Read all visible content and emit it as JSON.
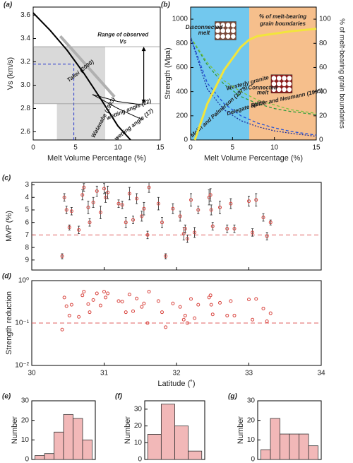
{
  "chart_data": [
    {
      "type": "line",
      "panel": "(a)",
      "xlabel": "Melt Volume Percentage (%)",
      "ylabel": "Vs (km/s)",
      "xlim": [
        0,
        15
      ],
      "xticks": [
        0,
        5,
        10,
        15
      ],
      "ylim": [
        2.53,
        3.67
      ],
      "yticks": [
        2.6,
        2.8,
        {
          "value": 3,
          "label": "3.0"
        },
        3.2,
        3.4,
        3.6
      ],
      "shade": {
        "x": [
          0,
          8.5,
          8.5,
          2.8,
          2.8,
          0
        ],
        "y": [
          3.33,
          3.33,
          2.53,
          2.53,
          2.84,
          2.84
        ],
        "color": "#d9d9d9"
      },
      "range": [
        2.84,
        3.33
      ],
      "guide": {
        "x": 4.8,
        "y": 3.18,
        "color": "#2233cc"
      },
      "annotations": [
        "Range of observed",
        "Vs"
      ],
      "series": [
        {
          "name": "Takei (2000)",
          "color": "#b0b0b0",
          "width": 4,
          "x": [
            3.2,
            9.6
          ],
          "values": [
            3.42,
            2.9
          ]
        },
        {
          "name": "Watanabe (1993)",
          "color": "#000000",
          "width": 2,
          "x": [
            0,
            2,
            4,
            6,
            8,
            10,
            11.5
          ],
          "values": [
            3.62,
            3.47,
            3.3,
            3.1,
            2.88,
            2.65,
            2.53
          ]
        },
        {
          "name": "wetting angle (22)",
          "color": "#000000",
          "width": 1,
          "x": [
            7,
            10,
            13
          ],
          "values": [
            2.92,
            2.86,
            2.83
          ]
        },
        {
          "name": "wetting angle (17)",
          "color": "#000000",
          "width": 1,
          "x": [
            7,
            10,
            13
          ],
          "values": [
            2.92,
            2.8,
            2.7
          ]
        }
      ]
    },
    {
      "type": "line",
      "panel": "(b)",
      "xlabel": "Melt Volume Percentage (%)",
      "ylabel": "Strength (Mpa)",
      "y2label": "% of melt-bearing grain boundaries",
      "xlim": [
        0,
        15
      ],
      "xticks": [
        0,
        5,
        10,
        15
      ],
      "ylim": [
        0,
        1100
      ],
      "yticks": [
        0,
        200,
        400,
        600,
        800,
        1000
      ],
      "y2lim": [
        0,
        110
      ],
      "y2ticks": [
        0,
        20,
        40,
        60,
        80,
        100
      ],
      "regions": [
        {
          "x": [
            0,
            7
          ],
          "color": "#72c8ee"
        },
        {
          "x": [
            7,
            15
          ],
          "color": "#f6bf8c"
        }
      ],
      "annotations": [
        "% of melt-bearing",
        "grain boundaries",
        "Disconnected",
        "melt",
        "Connected",
        "melt"
      ],
      "series": [
        {
          "name": "Westerly granite",
          "color": "#2e9b3f",
          "dash": "4,3",
          "x": [
            0,
            2,
            4,
            6,
            8,
            10,
            12,
            15
          ],
          "values": [
            850,
            620,
            460,
            360,
            300,
            260,
            235,
            210
          ]
        },
        {
          "name": "Rutter and Neumann (1995)",
          "color": "#7cc242",
          "dash": "4,3",
          "x": [
            0,
            2,
            4,
            6,
            8,
            10,
            12,
            15
          ],
          "values": [
            850,
            640,
            490,
            400,
            330,
            290,
            250,
            220
          ]
        },
        {
          "name": "Delegate aplite",
          "color": "#1f4fd8",
          "dash": "4,3",
          "x": [
            0,
            2,
            4,
            6,
            8,
            10,
            12,
            15
          ],
          "values": [
            850,
            470,
            300,
            200,
            140,
            100,
            70,
            40
          ]
        },
        {
          "name": "Mclin and Palmerson (1979)",
          "color": "#1a2a9a",
          "dash": "2,2",
          "x": [
            0,
            2,
            4,
            6,
            8,
            10,
            12,
            15
          ],
          "values": [
            850,
            420,
            250,
            160,
            110,
            75,
            55,
            30
          ]
        },
        {
          "color": "#f2e53c",
          "width": 3,
          "axis": "y2",
          "x": [
            0.5,
            2,
            4,
            6,
            7,
            8,
            10,
            12,
            15
          ],
          "values": [
            0,
            30,
            58,
            77,
            83,
            86,
            88,
            90,
            92
          ]
        }
      ]
    },
    {
      "type": "scatter",
      "panel": "(c)",
      "ylabel": "MVP (%)",
      "xlim": [
        30,
        34
      ],
      "xticks": [
        30,
        31,
        32,
        33,
        34
      ],
      "ylim": [
        9.8,
        2.8
      ],
      "yticks": [
        3,
        4,
        5,
        6,
        7,
        8,
        9
      ],
      "hline": 7,
      "color": "#d9453f",
      "x": [
        30.42,
        30.45,
        30.48,
        30.52,
        30.55,
        30.65,
        30.7,
        30.72,
        30.78,
        30.8,
        30.85,
        30.9,
        30.95,
        31.0,
        31.02,
        31.05,
        31.2,
        31.25,
        31.3,
        31.35,
        31.4,
        31.45,
        31.52,
        31.55,
        31.6,
        31.62,
        31.75,
        31.8,
        31.85,
        31.95,
        32.05,
        32.1,
        32.12,
        32.15,
        32.2,
        32.25,
        32.3,
        32.45,
        32.47,
        32.48,
        32.5,
        32.6,
        32.7,
        32.75,
        32.8,
        33.0,
        33.05,
        33.1,
        33.2,
        33.25,
        33.3
      ],
      "values": [
        8.7,
        4.0,
        5.0,
        6.4,
        5.1,
        6.6,
        3.8,
        3.2,
        4.8,
        6.0,
        4.4,
        3.5,
        5.2,
        3.3,
        4.0,
        3.6,
        4.5,
        4.6,
        6.0,
        3.7,
        5.8,
        4.1,
        5.5,
        4.9,
        7.0,
        3.2,
        4.5,
        6.0,
        8.7,
        4.9,
        5.5,
        6.9,
        6.5,
        7.3,
        4.2,
        6.8,
        5.0,
        4.0,
        3.8,
        5.0,
        6.3,
        4.8,
        6.5,
        4.5,
        6.5,
        4.3,
        6.8,
        4.2,
        5.6,
        7.1,
        6.0
      ],
      "errors": [
        0.2,
        0.3,
        0.3,
        0.2,
        0.3,
        0.3,
        0.4,
        0.3,
        0.5,
        0.3,
        0.4,
        0.4,
        0.5,
        0.4,
        0.4,
        0.5,
        0.3,
        0.3,
        0.4,
        0.5,
        0.3,
        0.4,
        0.4,
        0.5,
        0.3,
        0.4,
        0.5,
        0.4,
        0.2,
        0.4,
        0.4,
        0.5,
        0.3,
        0.3,
        0.5,
        0.4,
        0.3,
        0.6,
        0.5,
        0.4,
        0.3,
        0.5,
        0.3,
        0.4,
        0.3,
        0.4,
        0.3,
        0.5,
        0.3,
        0.3,
        0.2
      ]
    },
    {
      "type": "scatter",
      "panel": "(d)",
      "xlabel": "Latitude (˚)",
      "ylabel": "Strength reduction",
      "xlim": [
        30,
        34
      ],
      "xticks": [
        30,
        31,
        32,
        33,
        34
      ],
      "ylim": [
        0.01,
        1
      ],
      "log": true,
      "yticks": [
        {
          "value": 0.01,
          "label": "10⁻²"
        },
        {
          "value": 0.1,
          "label": "10⁻¹"
        },
        {
          "value": 1,
          "label": "10⁰"
        }
      ],
      "hline": 0.1,
      "color": "#d9453f",
      "x": [
        30.42,
        30.45,
        30.48,
        30.52,
        30.55,
        30.65,
        30.7,
        30.72,
        30.78,
        30.8,
        30.85,
        30.9,
        30.95,
        31.0,
        31.02,
        31.05,
        31.2,
        31.25,
        31.3,
        31.35,
        31.4,
        31.45,
        31.52,
        31.55,
        31.6,
        31.62,
        31.75,
        31.8,
        31.85,
        31.95,
        32.05,
        32.1,
        32.12,
        32.15,
        32.2,
        32.25,
        32.3,
        32.45,
        32.47,
        32.48,
        32.5,
        32.6,
        32.7,
        32.75,
        32.8,
        33.0,
        33.05,
        33.1,
        33.2,
        33.25,
        33.3
      ],
      "values": [
        0.07,
        0.4,
        0.25,
        0.15,
        0.27,
        0.14,
        0.45,
        0.55,
        0.28,
        0.18,
        0.35,
        0.5,
        0.26,
        0.55,
        0.4,
        0.5,
        0.33,
        0.32,
        0.18,
        0.47,
        0.19,
        0.38,
        0.24,
        0.29,
        0.1,
        0.55,
        0.33,
        0.18,
        0.08,
        0.29,
        0.24,
        0.12,
        0.15,
        0.1,
        0.37,
        0.13,
        0.27,
        0.4,
        0.45,
        0.27,
        0.16,
        0.3,
        0.15,
        0.33,
        0.15,
        0.36,
        0.12,
        0.37,
        0.22,
        0.11,
        0.17
      ]
    },
    {
      "type": "bar",
      "panel": "(e)",
      "ylabel": "Number",
      "ylim": [
        0,
        30
      ],
      "yticks": [
        0,
        10,
        20,
        30
      ],
      "color": "#f2b8b8",
      "categories": [
        null,
        null,
        null,
        null,
        null,
        null
      ],
      "values": [
        2,
        3,
        14,
        23,
        21,
        10
      ]
    },
    {
      "type": "bar",
      "panel": "(f)",
      "ylabel": "Number",
      "ylim": [
        0,
        35
      ],
      "yticks": [
        0,
        10,
        20,
        30
      ],
      "color": "#f2b8b8",
      "categories": [
        null,
        null,
        null,
        null
      ],
      "values": [
        15,
        33,
        20,
        5
      ]
    },
    {
      "type": "bar",
      "panel": "(g)",
      "ylabel": "Number",
      "ylim": [
        0,
        30
      ],
      "yticks": [
        0,
        10,
        20,
        30
      ],
      "color": "#f2b8b8",
      "categories": [
        null,
        null,
        null,
        null,
        null,
        null
      ],
      "values": [
        5,
        21,
        13,
        13,
        13,
        7
      ]
    }
  ]
}
